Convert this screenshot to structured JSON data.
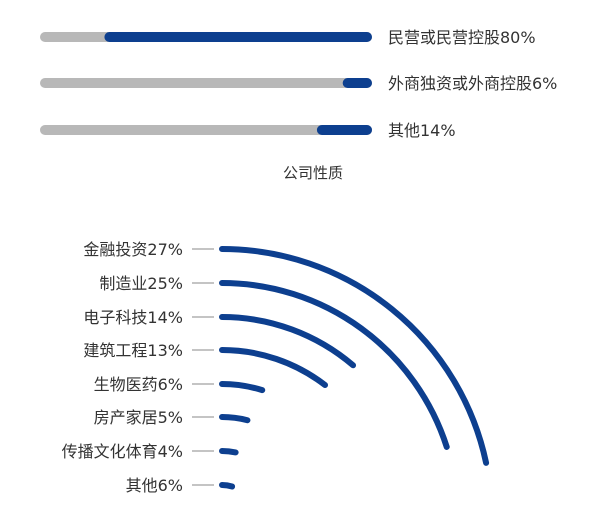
{
  "colors": {
    "accent": "#0d3f8f",
    "track": "#b8b8b8",
    "tick": "#888888"
  },
  "chart_data": [
    {
      "type": "bar",
      "title": "公司性质",
      "categories": [
        "民营或民营控股",
        "外商独资或外商控股",
        "其他"
      ],
      "values": [
        80,
        6,
        14
      ],
      "labels": [
        "民营或民营控股80%",
        "外商独资或外商控股6%",
        "其他14%"
      ],
      "unit": "%",
      "ylim": [
        0,
        100
      ]
    },
    {
      "type": "bar",
      "categories": [
        "金融投资",
        "制造业",
        "电子科技",
        "建筑工程",
        "生物医药",
        "房产家居",
        "传播文化体育",
        "其他"
      ],
      "values": [
        27,
        25,
        14,
        13,
        6,
        5,
        4,
        6
      ],
      "labels": [
        "金融投资27%",
        "制造业25%",
        "电子科技14%",
        "建筑工程13%",
        "生物医药6%",
        "房产家居5%",
        "传播文化体育4%",
        "其他6%"
      ],
      "unit": "%",
      "ylim": [
        0,
        27
      ]
    }
  ]
}
